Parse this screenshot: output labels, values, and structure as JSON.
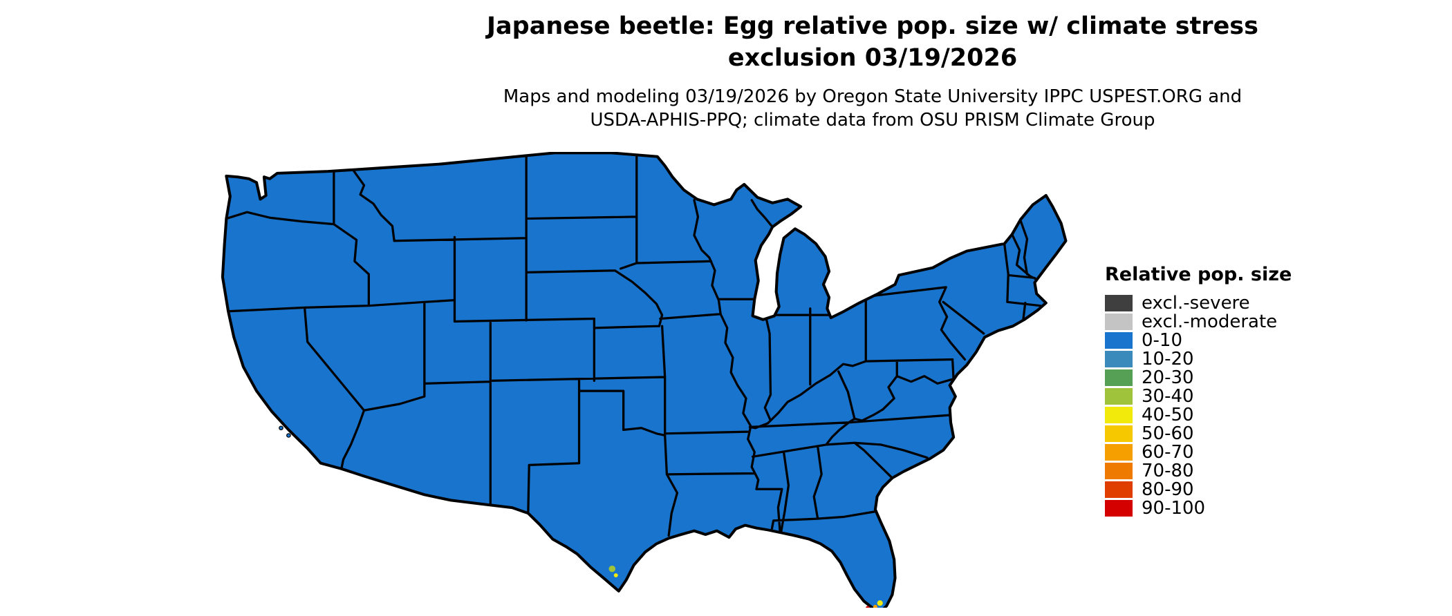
{
  "title": {
    "line1": "Japanese beetle: Egg relative pop. size w/ climate stress",
    "line2": "exclusion 03/19/2026"
  },
  "subtitle": {
    "line1": "Maps and modeling 03/19/2026 by Oregon State University IPPC USPEST.ORG and",
    "line2": "USDA-APHIS-PPQ; climate data from OSU PRISM Climate Group"
  },
  "legend": {
    "title": "Relative pop. size",
    "items": [
      {
        "label": "excl.-severe",
        "color": "#3f3f3f"
      },
      {
        "label": "excl.-moderate",
        "color": "#c4c4c4"
      },
      {
        "label": "0-10",
        "color": "#1874cd"
      },
      {
        "label": "10-20",
        "color": "#3a8bbb"
      },
      {
        "label": "20-30",
        "color": "#55a054"
      },
      {
        "label": "30-40",
        "color": "#9fc43b"
      },
      {
        "label": "40-50",
        "color": "#f2ea0a"
      },
      {
        "label": "50-60",
        "color": "#f5c800"
      },
      {
        "label": "60-70",
        "color": "#f5a000"
      },
      {
        "label": "70-80",
        "color": "#ef7a00"
      },
      {
        "label": "80-90",
        "color": "#e03e00"
      },
      {
        "label": "90-100",
        "color": "#d40000"
      }
    ]
  },
  "map": {
    "fill_color": "#1874cd",
    "outline_color": "#000000",
    "water_color": "#ffffff"
  }
}
